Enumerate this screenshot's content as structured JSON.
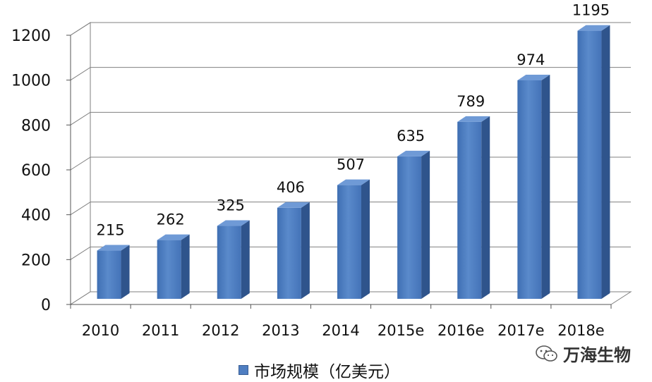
{
  "chart_data": {
    "type": "bar",
    "categories": [
      "2010",
      "2011",
      "2012",
      "2013",
      "2014",
      "2015e",
      "2016e",
      "2017e",
      "2018e"
    ],
    "series": [
      {
        "name": "市场规模（亿美元）",
        "values": [
          215,
          262,
          325,
          406,
          507,
          635,
          789,
          974,
          1195
        ]
      }
    ],
    "data_labels": [
      "215",
      "262",
      "325",
      "406",
      "507",
      "635",
      "789",
      "974",
      "1195"
    ],
    "y_ticks": [
      "0",
      "200",
      "400",
      "600",
      "800",
      "1000",
      "1200"
    ],
    "ylim": [
      0,
      1200
    ],
    "grid": true,
    "legend_position": "bottom",
    "bar_color": "#4f7ec1",
    "style": "3d"
  },
  "legend": {
    "label": "市场规模（亿美元）"
  },
  "watermark": {
    "text": "万海生物",
    "icon": "wechat-icon"
  }
}
